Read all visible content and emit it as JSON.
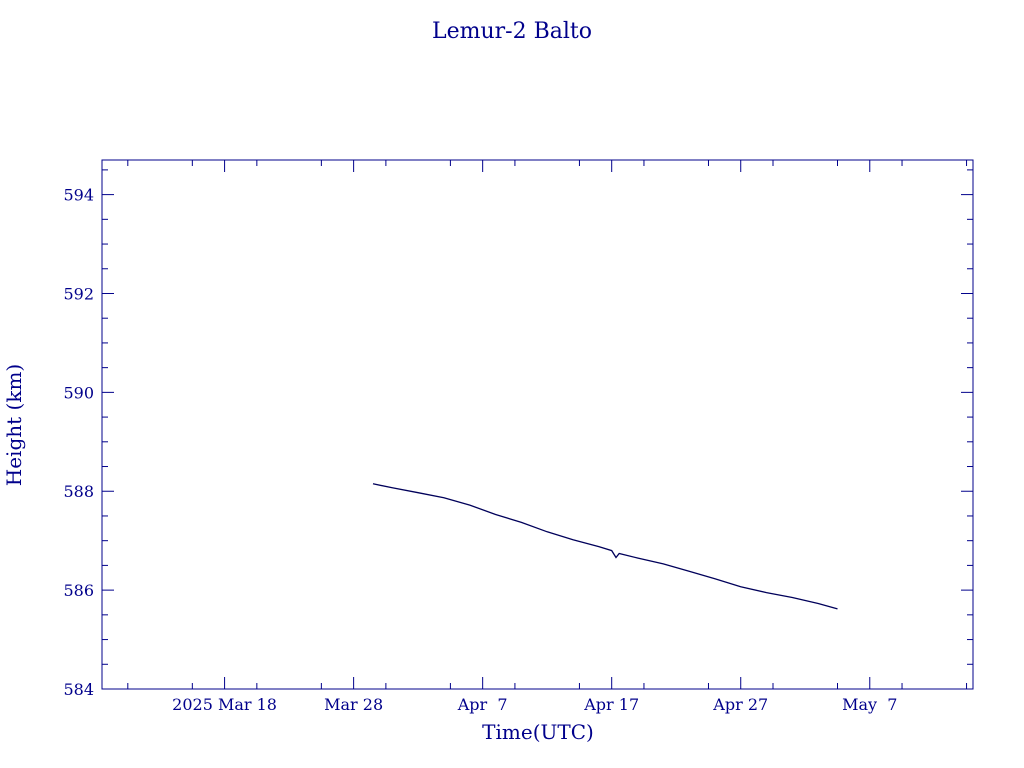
{
  "colors": {
    "axis": "#00008B",
    "text": "#00008B",
    "series": "#00005A",
    "background": "#ffffff"
  },
  "chart_data": {
    "type": "line",
    "title": "Lemur-2 Balto",
    "xlabel": "Time(UTC)",
    "ylabel": "Height (km)",
    "grid": false,
    "xlim": [
      "2025-03-08T12:00",
      "2025-05-15T00:00"
    ],
    "ylim": [
      584,
      594.7
    ],
    "yticks": [
      584,
      586,
      588,
      590,
      592,
      594
    ],
    "xticks": [
      {
        "date": "2025-03-18",
        "label": "2025 Mar 18"
      },
      {
        "date": "2025-03-28",
        "label": "Mar 28"
      },
      {
        "date": "2025-04-07",
        "label": "Apr  7"
      },
      {
        "date": "2025-04-17",
        "label": "Apr 17"
      },
      {
        "date": "2025-04-27",
        "label": "Apr 27"
      },
      {
        "date": "2025-05-07",
        "label": "May  7"
      }
    ],
    "series": [
      {
        "name": "",
        "points": [
          {
            "x": "2025-03-29T12:00",
            "y": 588.15
          },
          {
            "x": "2025-03-31T00:00",
            "y": 588.07
          },
          {
            "x": "2025-04-02T00:00",
            "y": 587.97
          },
          {
            "x": "2025-04-04T00:00",
            "y": 587.87
          },
          {
            "x": "2025-04-06T00:00",
            "y": 587.72
          },
          {
            "x": "2025-04-08T00:00",
            "y": 587.53
          },
          {
            "x": "2025-04-10T00:00",
            "y": 587.37
          },
          {
            "x": "2025-04-12T00:00",
            "y": 587.18
          },
          {
            "x": "2025-04-14T00:00",
            "y": 587.02
          },
          {
            "x": "2025-04-16T00:00",
            "y": 586.88
          },
          {
            "x": "2025-04-17T00:00",
            "y": 586.8
          },
          {
            "x": "2025-04-17T08:00",
            "y": 586.66
          },
          {
            "x": "2025-04-17T14:00",
            "y": 586.74
          },
          {
            "x": "2025-04-19T00:00",
            "y": 586.65
          },
          {
            "x": "2025-04-21T00:00",
            "y": 586.53
          },
          {
            "x": "2025-04-23T00:00",
            "y": 586.38
          },
          {
            "x": "2025-04-25T00:00",
            "y": 586.23
          },
          {
            "x": "2025-04-27T00:00",
            "y": 586.07
          },
          {
            "x": "2025-04-29T00:00",
            "y": 585.95
          },
          {
            "x": "2025-05-01T00:00",
            "y": 585.85
          },
          {
            "x": "2025-05-03T00:00",
            "y": 585.73
          },
          {
            "x": "2025-05-04T12:00",
            "y": 585.62
          }
        ]
      }
    ]
  }
}
